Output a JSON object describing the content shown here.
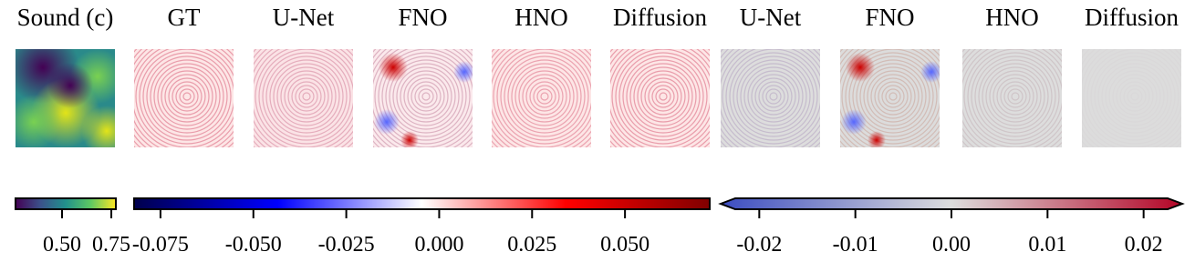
{
  "panels": [
    {
      "title": "Sound (c)"
    },
    {
      "title": "GT"
    },
    {
      "title": "U-Net"
    },
    {
      "title": "FNO"
    },
    {
      "title": "HNO"
    },
    {
      "title": "Diffusion"
    },
    {
      "title": "U-Net"
    },
    {
      "title": "FNO"
    },
    {
      "title": "HNO"
    },
    {
      "title": "Diffusion"
    }
  ],
  "colorbars": [
    {
      "range": [
        0.264,
        0.773
      ],
      "ticks": [
        {
          "value": 0.5,
          "label": "0.50"
        },
        {
          "value": 0.75,
          "label": "0.75"
        }
      ]
    },
    {
      "range": [
        -0.0821,
        0.0728
      ],
      "ticks": [
        {
          "value": -0.075,
          "label": "-0.075"
        },
        {
          "value": -0.05,
          "label": "-0.050"
        },
        {
          "value": -0.025,
          "label": "-0.025"
        },
        {
          "value": 0,
          "label": "0.000"
        },
        {
          "value": 0.025,
          "label": "0.025"
        },
        {
          "value": 0.05,
          "label": "0.050"
        }
      ]
    },
    {
      "range": [
        -0.0225,
        0.0225
      ],
      "ticks": [
        {
          "value": -0.02,
          "label": "-0.02"
        },
        {
          "value": -0.01,
          "label": "-0.01"
        },
        {
          "value": 0,
          "label": "0.00"
        },
        {
          "value": 0.01,
          "label": "0.01"
        },
        {
          "value": 0.02,
          "label": "0.02"
        }
      ]
    }
  ]
}
